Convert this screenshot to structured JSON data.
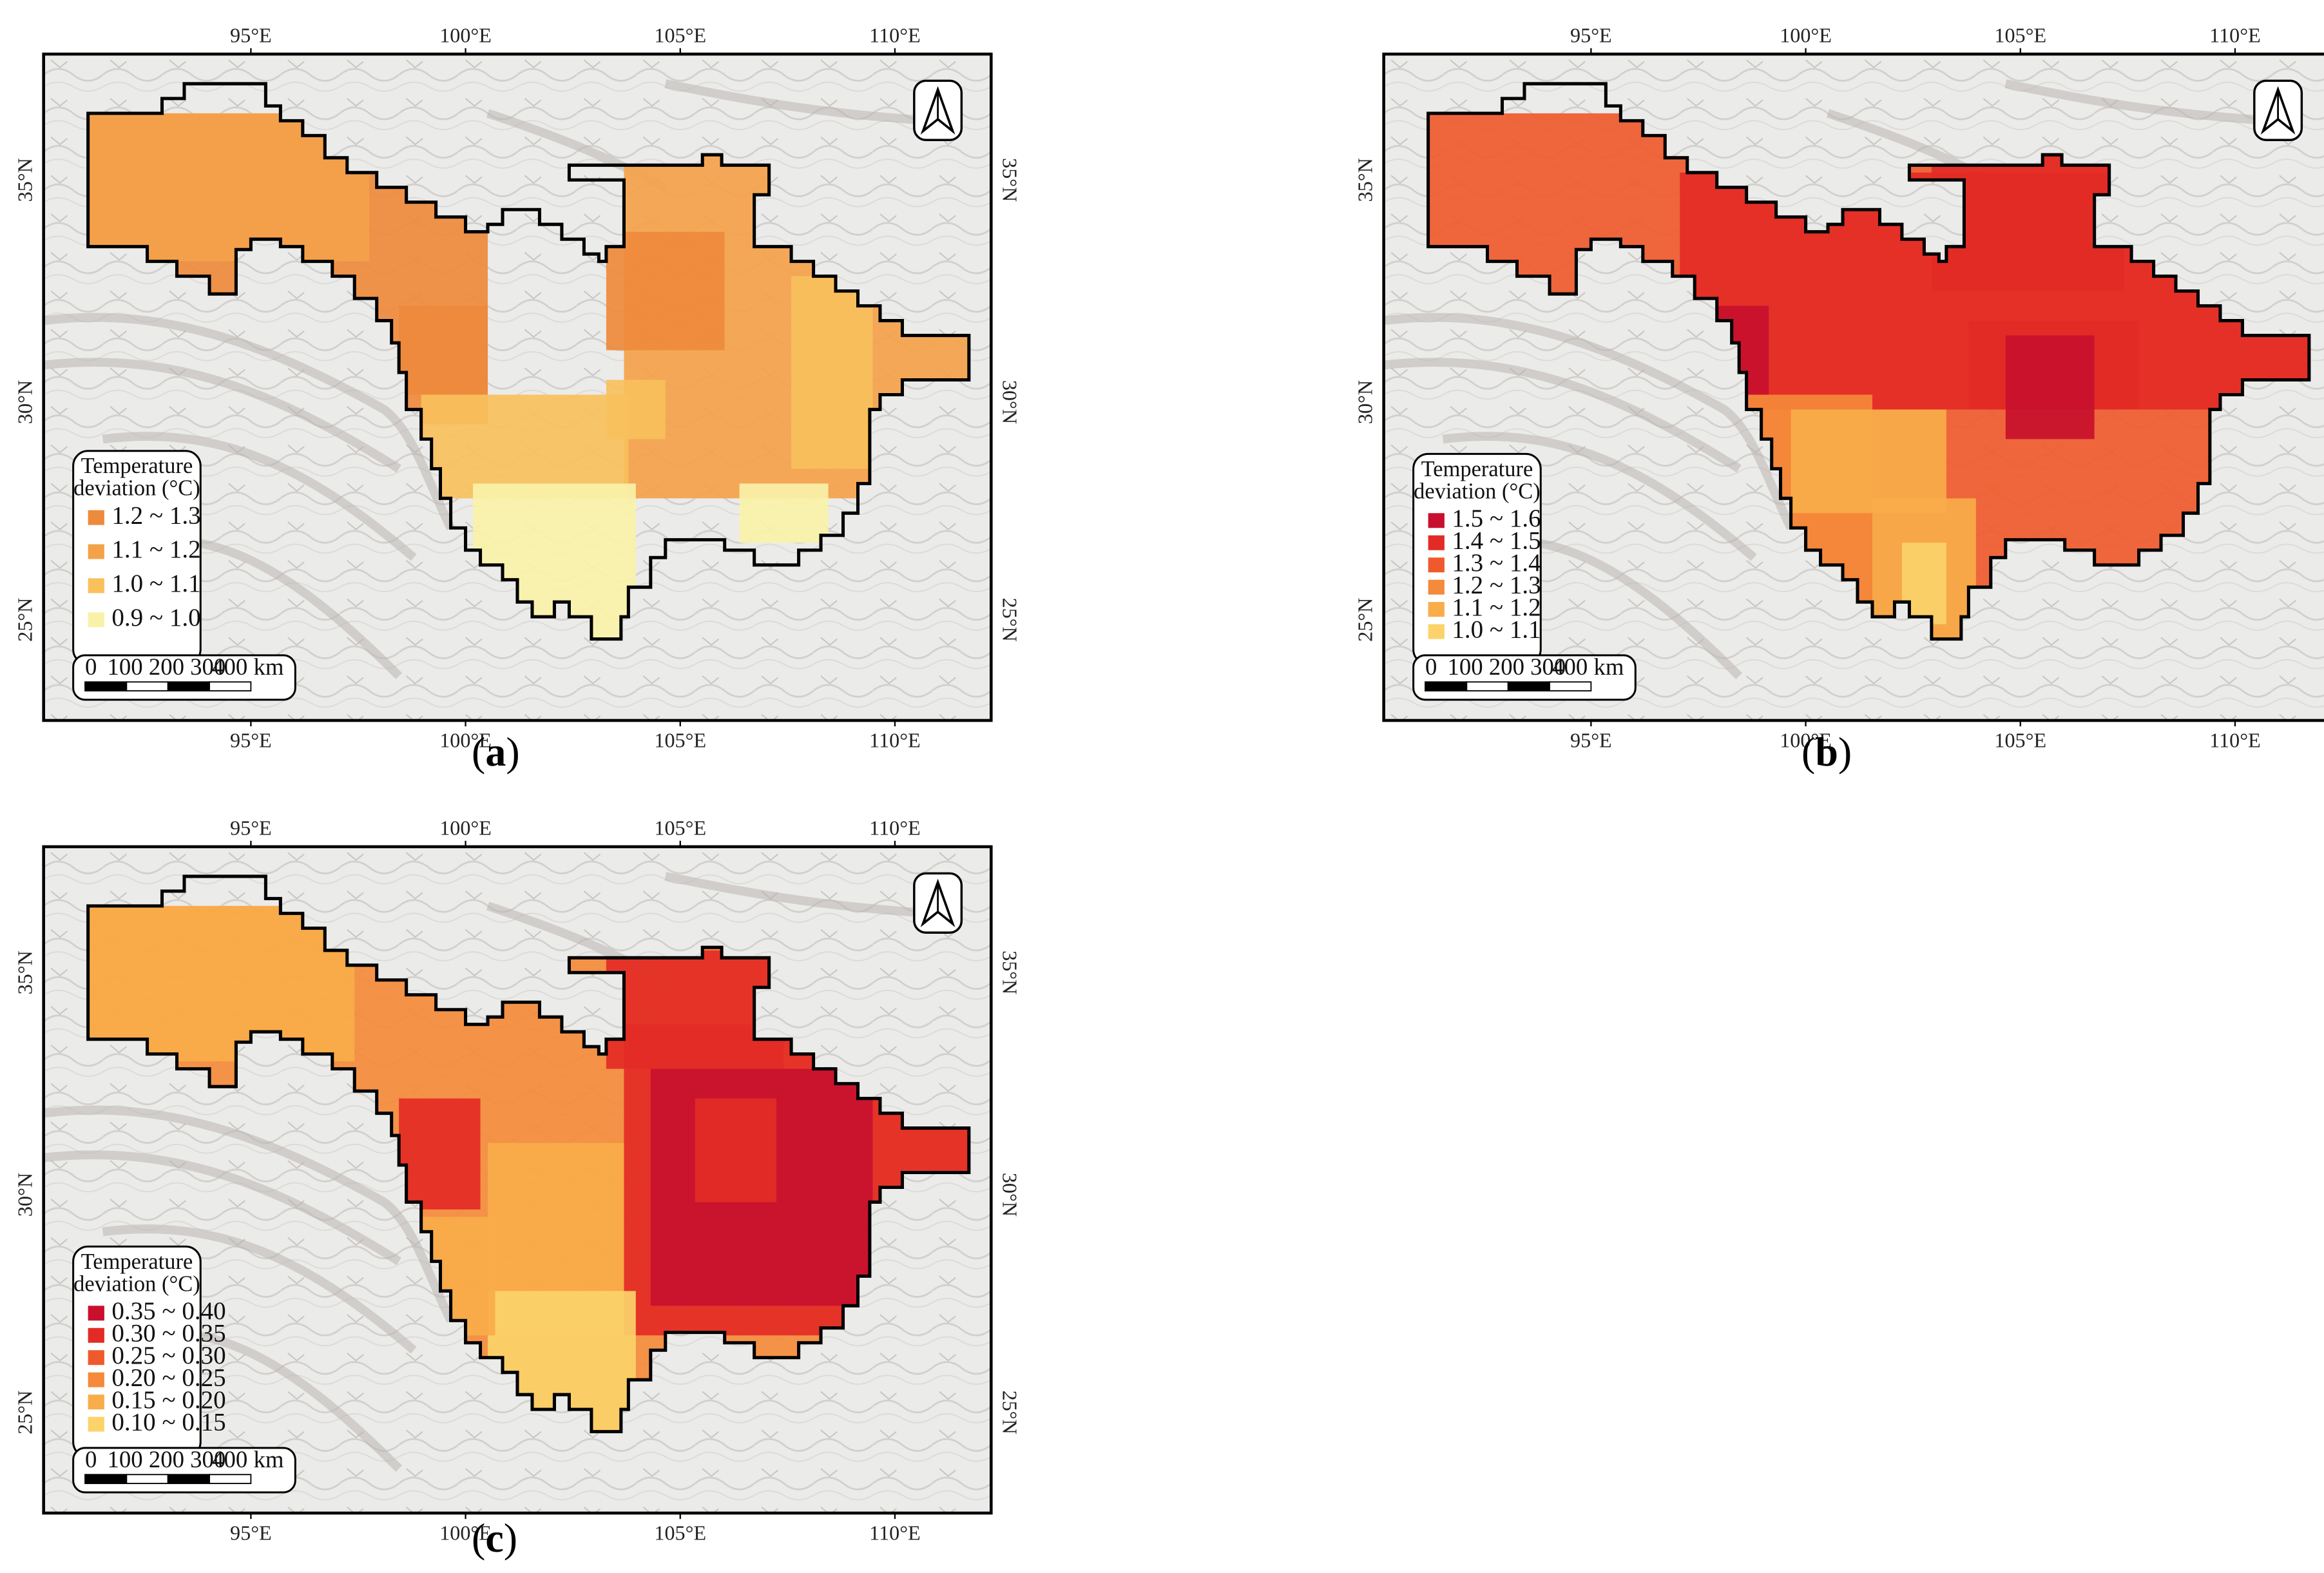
{
  "panels": [
    {
      "id": "a",
      "caption_letter": "a",
      "lon_ticks": [
        "95°E",
        "100°E",
        "105°E",
        "110°E"
      ],
      "lat_ticks": [
        "35°N",
        "30°N",
        "25°N"
      ],
      "legend": {
        "title_line1": "Temperature",
        "title_line2": "deviation (°C)",
        "items": [
          {
            "label": "1.2 ~ 1.3",
            "color": "#ee8a3c"
          },
          {
            "label": "1.1 ~ 1.2",
            "color": "#f4a24a"
          },
          {
            "label": "1.0 ~ 1.1",
            "color": "#f9c05c"
          },
          {
            "label": "0.9 ~ 1.0",
            "color": "#f8f2a8"
          }
        ]
      },
      "scale_bar": {
        "labels": [
          "0",
          "100",
          "200",
          "300",
          "400 km"
        ]
      },
      "north_arrow": "north-arrow-icon"
    },
    {
      "id": "b",
      "caption_letter": "b",
      "lon_ticks": [
        "95°E",
        "100°E",
        "105°E",
        "110°E"
      ],
      "lat_ticks": [
        "35°N",
        "30°N",
        "25°N"
      ],
      "legend": {
        "title_line1": "Temperature",
        "title_line2": "deviation (°C)",
        "items": [
          {
            "label": "1.5 ~ 1.6",
            "color": "#c8102e"
          },
          {
            "label": "1.4 ~ 1.5",
            "color": "#e32b26"
          },
          {
            "label": "1.3 ~ 1.4",
            "color": "#ef5a2c"
          },
          {
            "label": "1.2 ~ 1.3",
            "color": "#f48a3a"
          },
          {
            "label": "1.1 ~ 1.2",
            "color": "#f8ac4a"
          },
          {
            "label": "1.0 ~ 1.1",
            "color": "#fbd36a"
          }
        ]
      },
      "scale_bar": {
        "labels": [
          "0",
          "100",
          "200",
          "300",
          "400 km"
        ]
      },
      "north_arrow": "north-arrow-icon"
    },
    {
      "id": "c",
      "caption_letter": "c",
      "lon_ticks": [
        "95°E",
        "100°E",
        "105°E",
        "110°E"
      ],
      "lat_ticks": [
        "35°N",
        "30°N",
        "25°N"
      ],
      "legend": {
        "title_line1": "Temperature",
        "title_line2": "deviation (°C)",
        "items": [
          {
            "label": "0.35 ~ 0.40",
            "color": "#c8102e"
          },
          {
            "label": "0.30 ~ 0.35",
            "color": "#e32b26"
          },
          {
            "label": "0.25 ~ 0.30",
            "color": "#ef5a2c"
          },
          {
            "label": "0.20 ~ 0.25",
            "color": "#f48a3a"
          },
          {
            "label": "0.15 ~ 0.20",
            "color": "#f8ac4a"
          },
          {
            "label": "0.10 ~ 0.15",
            "color": "#fbd36a"
          }
        ]
      },
      "scale_bar": {
        "labels": [
          "0",
          "100",
          "200",
          "300",
          "400 km"
        ]
      },
      "north_arrow": "north-arrow-icon"
    }
  ]
}
